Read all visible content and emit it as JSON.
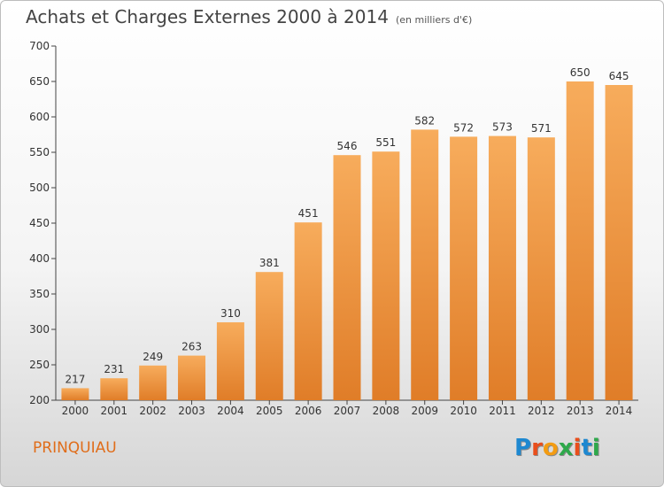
{
  "title": "Achats et Charges Externes 2000 à 2014",
  "unit_note": "(en milliers d'€)",
  "location": "PRINQUIAU",
  "brand": "Proxiti",
  "colors": {
    "bar": "#f0963f",
    "bar_light": "#f7ac5c",
    "bar_dark": "#e07d28",
    "axis": "#444444",
    "location_text": "#e06d1a"
  },
  "chart_data": {
    "type": "bar",
    "title": "Achats et Charges Externes 2000 à 2014",
    "categories": [
      "2000",
      "2001",
      "2002",
      "2003",
      "2004",
      "2005",
      "2006",
      "2007",
      "2008",
      "2009",
      "2010",
      "2011",
      "2012",
      "2013",
      "2014"
    ],
    "values": [
      217,
      231,
      249,
      263,
      310,
      381,
      451,
      546,
      551,
      582,
      572,
      573,
      571,
      650,
      645
    ],
    "ylim": [
      200,
      700
    ],
    "yticks": [
      200,
      250,
      300,
      350,
      400,
      450,
      500,
      550,
      600,
      650,
      700
    ],
    "xlabel": "",
    "ylabel": "",
    "grid": false,
    "data_labels": true
  }
}
